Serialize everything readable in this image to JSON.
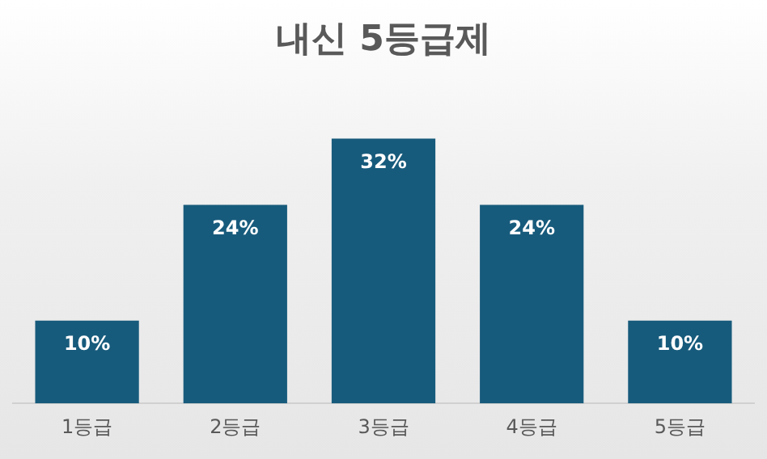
{
  "chart_data": {
    "type": "bar",
    "title": "내신 5등급제",
    "categories": [
      "1등급",
      "2등급",
      "3등급",
      "4등급",
      "5등급"
    ],
    "values": [
      10,
      24,
      32,
      24,
      10
    ],
    "value_labels": [
      "10%",
      "24%",
      "32%",
      "24%",
      "10%"
    ],
    "color": "#175b7c",
    "grid": false,
    "legend": false
  }
}
